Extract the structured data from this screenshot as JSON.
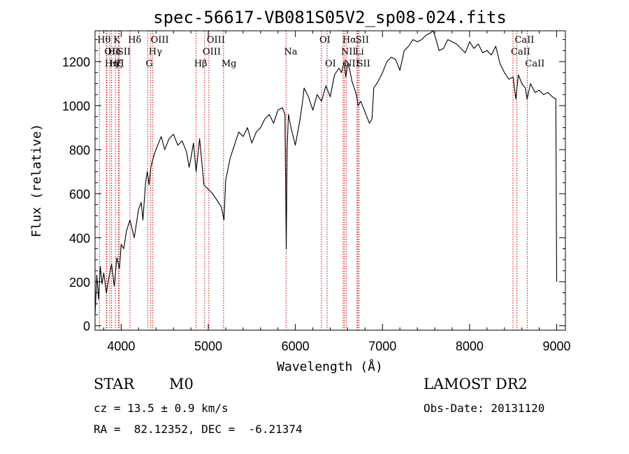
{
  "chart_data": {
    "type": "line",
    "title": "spec-56617-VB081S05V2_sp08-024.fits",
    "xlabel": "Wavelength (Å)",
    "ylabel": "Flux (relative)",
    "xlim": [
      3700,
      9100
    ],
    "ylim": [
      -20,
      1340
    ],
    "xticks": [
      4000,
      5000,
      6000,
      7000,
      8000,
      9000
    ],
    "yticks": [
      0,
      200,
      400,
      600,
      800,
      1000,
      1200
    ],
    "x_tick_labels": [
      "4000",
      "5000",
      "6000",
      "7000",
      "8000",
      "9000"
    ],
    "y_tick_labels": [
      "0",
      "200",
      "400",
      "600",
      "800",
      "1000",
      "1200"
    ],
    "grid": false,
    "line_color": "#000000",
    "marker_color": "#cc0000",
    "series": [
      {
        "x": [
          3700,
          3720,
          3740,
          3760,
          3780,
          3800,
          3830,
          3860,
          3890,
          3920,
          3950,
          3980,
          4000,
          4030,
          4060,
          4100,
          4150,
          4200,
          4230,
          4250,
          4280,
          4300,
          4320,
          4340,
          4380,
          4420,
          4460,
          4500,
          4550,
          4600,
          4650,
          4700,
          4750,
          4780,
          4800,
          4830,
          4860,
          4900,
          4950,
          5000,
          5050,
          5100,
          5150,
          5180,
          5200,
          5250,
          5300,
          5350,
          5400,
          5450,
          5500,
          5550,
          5600,
          5650,
          5700,
          5750,
          5800,
          5850,
          5880,
          5895,
          5905,
          5920,
          5950,
          6000,
          6050,
          6080,
          6100,
          6150,
          6200,
          6250,
          6300,
          6350,
          6400,
          6450,
          6500,
          6530,
          6560,
          6580,
          6600,
          6620,
          6650,
          6700,
          6720,
          6750,
          6800,
          6850,
          6880,
          6900,
          6950,
          7000,
          7050,
          7100,
          7150,
          7200,
          7250,
          7300,
          7350,
          7400,
          7450,
          7500,
          7550,
          7580,
          7600,
          7650,
          7700,
          7750,
          7800,
          7850,
          7900,
          7950,
          8000,
          8050,
          8100,
          8150,
          8200,
          8250,
          8300,
          8350,
          8400,
          8450,
          8500,
          8530,
          8560,
          8600,
          8640,
          8660,
          8700,
          8750,
          8800,
          8850,
          8900,
          8950,
          8990,
          9000
        ],
        "y": [
          50,
          230,
          120,
          270,
          190,
          240,
          150,
          220,
          280,
          180,
          310,
          260,
          370,
          350,
          430,
          480,
          400,
          530,
          560,
          480,
          650,
          700,
          640,
          720,
          780,
          820,
          860,
          800,
          850,
          870,
          820,
          840,
          790,
          720,
          760,
          830,
          700,
          850,
          640,
          620,
          600,
          570,
          540,
          480,
          660,
          760,
          820,
          880,
          860,
          900,
          830,
          880,
          900,
          940,
          960,
          920,
          980,
          990,
          960,
          350,
          800,
          960,
          900,
          820,
          930,
          1010,
          1080,
          1040,
          980,
          1050,
          1020,
          1090,
          1040,
          1140,
          1170,
          1150,
          1200,
          1130,
          1190,
          1170,
          1110,
          1050,
          1000,
          1020,
          970,
          920,
          940,
          1080,
          1110,
          1150,
          1200,
          1220,
          1210,
          1160,
          1250,
          1270,
          1300,
          1290,
          1300,
          1320,
          1330,
          1340,
          1320,
          1250,
          1260,
          1300,
          1290,
          1280,
          1260,
          1240,
          1290,
          1260,
          1280,
          1240,
          1250,
          1230,
          1270,
          1190,
          1150,
          1120,
          1130,
          1030,
          1140,
          1100,
          1080,
          1030,
          1100,
          1060,
          1070,
          1050,
          1060,
          1040,
          1030,
          200
        ]
      }
    ],
    "line_markers": [
      {
        "x": 3750,
        "label": "Hθ",
        "row": 0,
        "anchor": "start"
      },
      {
        "x": 3830,
        "label": "OII",
        "row": 1,
        "anchor": "start"
      },
      {
        "x": 3835,
        "label": "Hη",
        "row": 2,
        "anchor": "start"
      },
      {
        "x": 3870,
        "label": "He",
        "row": 1,
        "anchor": "start"
      },
      {
        "x": 3890,
        "label": "Hζ",
        "row": 2,
        "anchor": "start"
      },
      {
        "x": 3934,
        "label": "K",
        "row": 0,
        "anchor": "start"
      },
      {
        "x": 3968,
        "label": "H",
        "row": 2,
        "anchor": "start"
      },
      {
        "x": 3980,
        "label": "SII",
        "row": 1,
        "anchor": "start"
      },
      {
        "x": 4102,
        "label": "Hδ",
        "row": 0,
        "anchor": "start"
      },
      {
        "x": 4305,
        "label": "G",
        "row": 2,
        "anchor": "start"
      },
      {
        "x": 4340,
        "label": "Hγ",
        "row": 1,
        "anchor": "start"
      },
      {
        "x": 4363,
        "label": "OIII",
        "row": 0,
        "anchor": "start"
      },
      {
        "x": 4861,
        "label": "Hβ",
        "row": 2,
        "anchor": "start"
      },
      {
        "x": 4959,
        "label": "OIII",
        "row": 1,
        "anchor": "start"
      },
      {
        "x": 5007,
        "label": "OIII",
        "row": 0,
        "anchor": "start"
      },
      {
        "x": 5175,
        "label": "Mg",
        "row": 2,
        "anchor": "start"
      },
      {
        "x": 5893,
        "label": "Na",
        "row": 1,
        "anchor": "start"
      },
      {
        "x": 6300,
        "label": "OI",
        "row": 0,
        "anchor": "start"
      },
      {
        "x": 6364,
        "label": "OI",
        "row": 2,
        "anchor": "start"
      },
      {
        "x": 6548,
        "label": "NII",
        "row": 1,
        "anchor": "start"
      },
      {
        "x": 6563,
        "label": "Hα",
        "row": 0,
        "anchor": "start"
      },
      {
        "x": 6583,
        "label": "NII",
        "row": 2,
        "anchor": "start"
      },
      {
        "x": 6708,
        "label": "Li",
        "row": 1,
        "anchor": "start"
      },
      {
        "x": 6716,
        "label": "SII",
        "row": 0,
        "anchor": "start"
      },
      {
        "x": 6731,
        "label": "SII",
        "row": 2,
        "anchor": "start"
      },
      {
        "x": 8498,
        "label": "CaII",
        "row": 1,
        "anchor": "start"
      },
      {
        "x": 8542,
        "label": "CaII",
        "row": 0,
        "anchor": "start"
      },
      {
        "x": 8662,
        "label": "CaII",
        "row": 2,
        "anchor": "start"
      }
    ]
  },
  "info": {
    "object_class": "STAR",
    "subclass": "M0",
    "survey": "LAMOST DR2",
    "redshift": "cz = 13.5 ± 0.9 km/s",
    "obs_date": "Obs-Date: 20131120",
    "coords": "RA =  82.12352, DEC =  -6.21374"
  }
}
